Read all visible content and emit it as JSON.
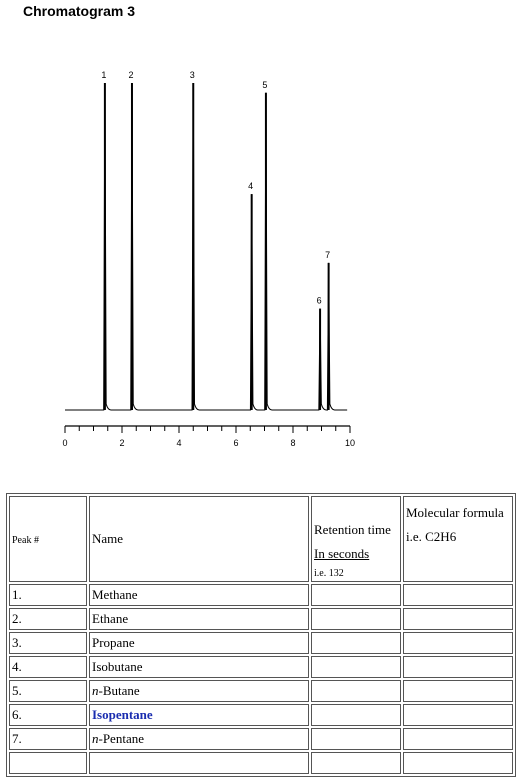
{
  "title": "Chromatogram 3",
  "chart_data": {
    "type": "line",
    "xlim": [
      0,
      10
    ],
    "x_ticks": [
      "0",
      "2",
      "4",
      "6",
      "8",
      "10"
    ],
    "peaks": [
      {
        "label": "1",
        "x": 1.4,
        "height": 1.0
      },
      {
        "label": "2",
        "x": 2.35,
        "height": 1.0
      },
      {
        "label": "3",
        "x": 4.5,
        "height": 1.0
      },
      {
        "label": "4",
        "x": 6.55,
        "height": 0.66
      },
      {
        "label": "5",
        "x": 7.05,
        "height": 0.97
      },
      {
        "label": "6",
        "x": 8.95,
        "height": 0.31
      },
      {
        "label": "7",
        "x": 9.25,
        "height": 0.45
      }
    ]
  },
  "table": {
    "headers": {
      "peak": "Peak #",
      "name": "Name",
      "rt_line1": "Retention time",
      "rt_line2": "In seconds",
      "rt_line3": "i.e. 132",
      "mf_line1": "Molecular formula",
      "mf_line2": "i.e. C2H6"
    },
    "rows": [
      {
        "num": "1.",
        "name": "Methane"
      },
      {
        "num": "2.",
        "name": "Ethane"
      },
      {
        "num": "3.",
        "name": "Propane"
      },
      {
        "num": "4.",
        "name": "Isobutane"
      },
      {
        "num": "5.",
        "name_prefix": "n",
        "name": "-Butane"
      },
      {
        "num": "6.",
        "name": "Isopentane"
      },
      {
        "num": "7.",
        "name_prefix": "n",
        "name": "-Pentane"
      }
    ]
  }
}
